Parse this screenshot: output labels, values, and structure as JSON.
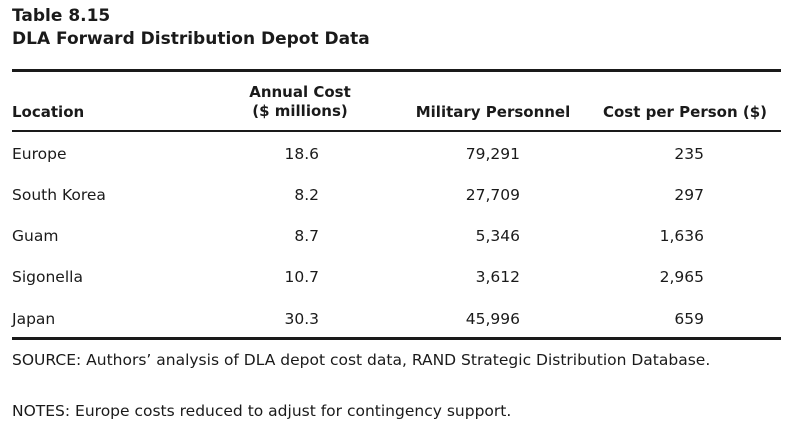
{
  "caption": {
    "number": "Table 8.15",
    "title": "DLA Forward Distribution Depot Data"
  },
  "columns": {
    "location": "Location",
    "annual_cost_line1": "Annual Cost",
    "annual_cost_line2": "($ millions)",
    "military_personnel": "Military Personnel",
    "cost_per_person": "Cost per Person ($)"
  },
  "rows": [
    {
      "location": "Europe",
      "annual_cost": "18.6",
      "military_personnel": "79,291",
      "cost_per_person": "235"
    },
    {
      "location": "South Korea",
      "annual_cost": "8.2",
      "military_personnel": "27,709",
      "cost_per_person": "297"
    },
    {
      "location": "Guam",
      "annual_cost": "8.7",
      "military_personnel": "5,346",
      "cost_per_person": "1,636"
    },
    {
      "location": "Sigonella",
      "annual_cost": "10.7",
      "military_personnel": "3,612",
      "cost_per_person": "2,965"
    },
    {
      "location": "Japan",
      "annual_cost": "30.3",
      "military_personnel": "45,996",
      "cost_per_person": "659"
    }
  ],
  "footer": {
    "source": "SOURCE: Authors’ analysis of DLA depot cost data, RAND Strategic Distribution Database.",
    "notes": "NOTES: Europe costs reduced to adjust for contingency support."
  }
}
